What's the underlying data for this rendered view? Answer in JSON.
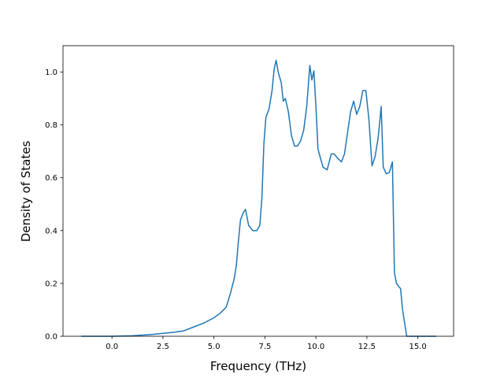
{
  "chart_data": {
    "type": "line",
    "title": "",
    "xlabel": "Frequency (THz)",
    "ylabel": "Density of States",
    "xlim": [
      -2.4,
      16.75
    ],
    "ylim": [
      0.0,
      1.1
    ],
    "x_ticks": [
      0.0,
      2.5,
      5.0,
      7.5,
      10.0,
      12.5,
      15.0
    ],
    "x_tick_labels": [
      "0.0",
      "2.5",
      "5.0",
      "7.5",
      "10.0",
      "12.5",
      "15.0"
    ],
    "y_ticks": [
      0.0,
      0.2,
      0.4,
      0.6,
      0.8,
      1.0
    ],
    "y_tick_labels": [
      "0.0",
      "0.2",
      "0.4",
      "0.6",
      "0.8",
      "1.0"
    ],
    "grid": false,
    "legend": "none",
    "series": [
      {
        "color": "#1f77b4",
        "x": [
          -1.5,
          0.0,
          1.0,
          2.0,
          3.0,
          3.5,
          4.0,
          4.5,
          5.0,
          5.3,
          5.6,
          5.8,
          6.0,
          6.1,
          6.2,
          6.3,
          6.45,
          6.55,
          6.7,
          6.9,
          7.1,
          7.25,
          7.35,
          7.45,
          7.55,
          7.7,
          7.85,
          7.95,
          8.05,
          8.15,
          8.3,
          8.4,
          8.5,
          8.65,
          8.8,
          8.95,
          9.1,
          9.25,
          9.4,
          9.55,
          9.7,
          9.8,
          9.9,
          10.0,
          10.1,
          10.2,
          10.35,
          10.55,
          10.75,
          10.9,
          11.05,
          11.25,
          11.4,
          11.55,
          11.7,
          11.85,
          12.0,
          12.15,
          12.3,
          12.45,
          12.6,
          12.75,
          12.9,
          13.05,
          13.2,
          13.3,
          13.45,
          13.6,
          13.75,
          13.85,
          13.95,
          14.15,
          14.25,
          14.35,
          14.45,
          14.6,
          15.0,
          15.9
        ],
        "y": [
          0.0,
          0.0,
          0.002,
          0.007,
          0.015,
          0.02,
          0.035,
          0.05,
          0.07,
          0.087,
          0.11,
          0.16,
          0.22,
          0.27,
          0.36,
          0.44,
          0.47,
          0.48,
          0.42,
          0.4,
          0.4,
          0.42,
          0.52,
          0.73,
          0.83,
          0.86,
          0.93,
          1.01,
          1.045,
          1.0,
          0.96,
          0.89,
          0.9,
          0.85,
          0.76,
          0.72,
          0.72,
          0.74,
          0.78,
          0.87,
          1.025,
          0.97,
          1.005,
          0.87,
          0.71,
          0.68,
          0.64,
          0.63,
          0.69,
          0.69,
          0.675,
          0.66,
          0.69,
          0.77,
          0.85,
          0.89,
          0.84,
          0.87,
          0.93,
          0.93,
          0.82,
          0.645,
          0.68,
          0.75,
          0.87,
          0.64,
          0.615,
          0.62,
          0.66,
          0.24,
          0.2,
          0.18,
          0.1,
          0.05,
          0.0,
          0.0,
          0.0,
          0.0
        ]
      }
    ]
  }
}
